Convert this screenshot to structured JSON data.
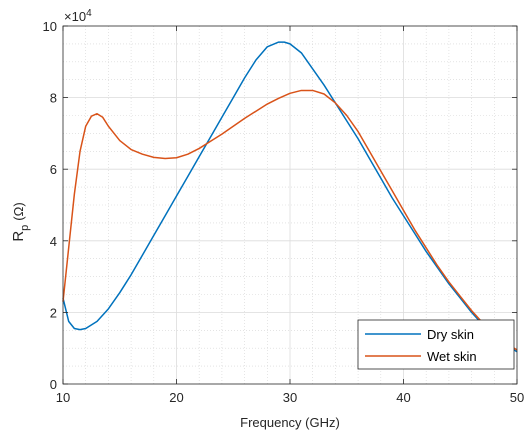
{
  "chart_data": {
    "type": "line",
    "xlabel": "Frequency (GHz)",
    "ylabel_main": "R",
    "ylabel_sub": "p",
    "ylabel_unit": "(Ω)",
    "exponent_label_base": "×10",
    "exponent_label_power": "4",
    "xlim": [
      10,
      50
    ],
    "ylim": [
      0,
      10
    ],
    "y_scale_factor": 10000,
    "x_ticks": [
      10,
      20,
      30,
      40,
      50
    ],
    "y_ticks": [
      0,
      2,
      4,
      6,
      8,
      10
    ],
    "x_tick_labels": [
      "10",
      "20",
      "30",
      "40",
      "50"
    ],
    "y_tick_labels": [
      "0",
      "2",
      "4",
      "6",
      "8",
      "10"
    ],
    "grid": "major-solid-and-minor-dotted",
    "legend_position": "bottom-right",
    "series": [
      {
        "name": "Dry skin",
        "color": "#0072BD",
        "x": [
          10,
          10.5,
          11,
          11.5,
          12,
          13,
          14,
          15,
          16,
          17,
          18,
          19,
          20,
          21,
          22,
          23,
          24,
          25,
          26,
          27,
          28,
          29,
          29.5,
          30,
          31,
          32,
          33,
          34,
          35,
          36,
          37,
          38,
          39,
          40,
          41,
          42,
          43,
          44,
          45,
          46,
          47,
          48,
          49,
          50
        ],
        "y": [
          2.4,
          1.75,
          1.55,
          1.52,
          1.55,
          1.75,
          2.1,
          2.55,
          3.05,
          3.6,
          4.15,
          4.7,
          5.25,
          5.8,
          6.35,
          6.9,
          7.45,
          8.0,
          8.55,
          9.05,
          9.42,
          9.55,
          9.55,
          9.5,
          9.25,
          8.8,
          8.35,
          7.85,
          7.35,
          6.85,
          6.3,
          5.75,
          5.2,
          4.7,
          4.2,
          3.7,
          3.25,
          2.8,
          2.4,
          2.0,
          1.65,
          1.35,
          1.1,
          0.9
        ]
      },
      {
        "name": "Wet skin",
        "color": "#D95319",
        "x": [
          10,
          10.5,
          11,
          11.5,
          12,
          12.5,
          13,
          13.5,
          14,
          15,
          16,
          17,
          18,
          19,
          20,
          21,
          22,
          23,
          24,
          25,
          26,
          27,
          28,
          29,
          30,
          31,
          32,
          33,
          34,
          35,
          36,
          37,
          38,
          39,
          40,
          41,
          42,
          43,
          44,
          45,
          46,
          47,
          48,
          49,
          50
        ],
        "y": [
          2.3,
          3.8,
          5.3,
          6.5,
          7.2,
          7.48,
          7.55,
          7.45,
          7.2,
          6.8,
          6.55,
          6.42,
          6.33,
          6.3,
          6.32,
          6.42,
          6.58,
          6.78,
          6.98,
          7.2,
          7.42,
          7.62,
          7.82,
          7.98,
          8.12,
          8.2,
          8.2,
          8.1,
          7.85,
          7.5,
          7.05,
          6.5,
          5.95,
          5.4,
          4.85,
          4.3,
          3.8,
          3.3,
          2.85,
          2.45,
          2.05,
          1.7,
          1.4,
          1.15,
          0.95
        ]
      }
    ]
  }
}
